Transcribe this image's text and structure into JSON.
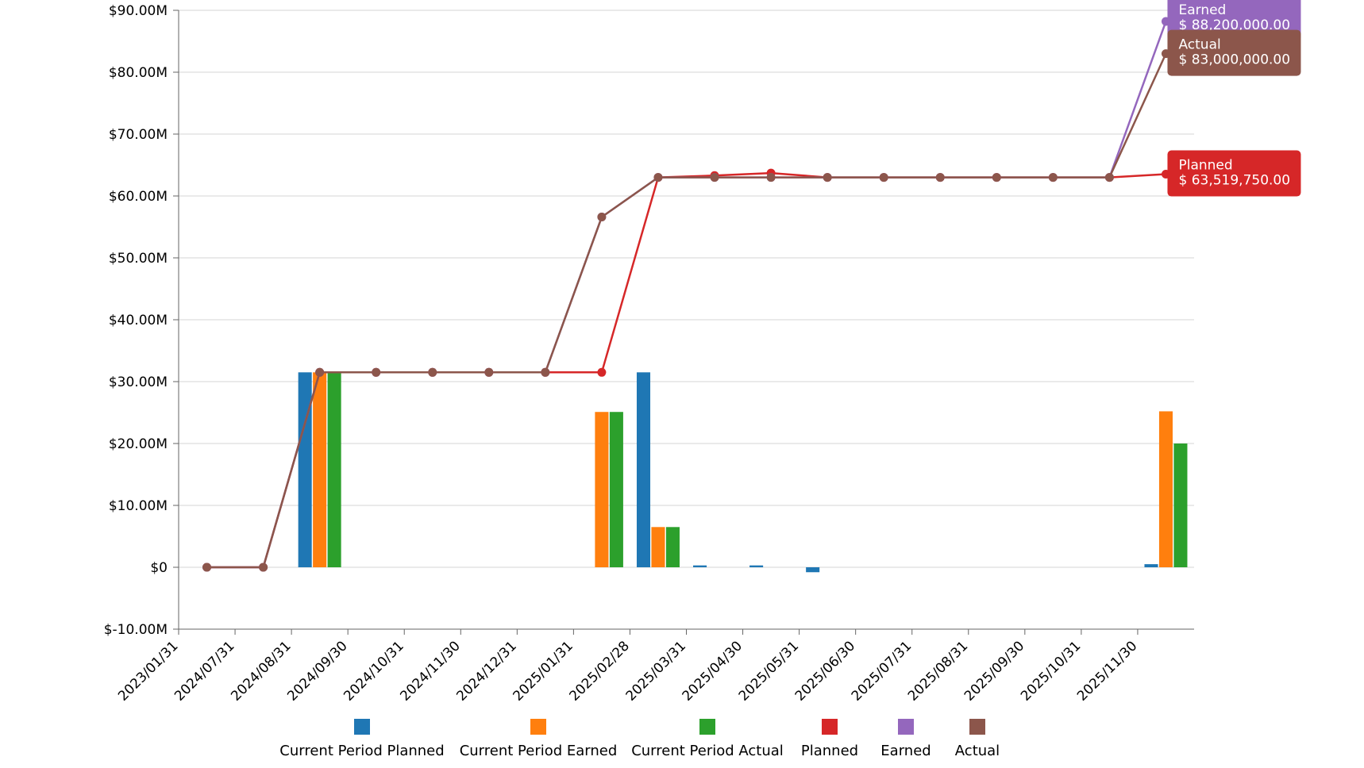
{
  "chart_data": {
    "type": "bar",
    "categories": [
      "2023/01/31",
      "2024/07/31",
      "2024/08/31",
      "2024/09/30",
      "2024/10/31",
      "2024/11/30",
      "2024/12/31",
      "2025/01/31",
      "2025/02/28",
      "2025/03/31",
      "2025/04/30",
      "2025/05/31",
      "2025/06/30",
      "2025/07/31",
      "2025/08/31",
      "2025/09/30",
      "2025/10/31",
      "2025/11/30"
    ],
    "ylim": [
      -10000000,
      90000000
    ],
    "y_ticks": [
      {
        "value": 90000000,
        "label": "$90.00M"
      },
      {
        "value": 80000000,
        "label": "$80.00M"
      },
      {
        "value": 70000000,
        "label": "$70.00M"
      },
      {
        "value": 60000000,
        "label": "$60.00M"
      },
      {
        "value": 50000000,
        "label": "$50.00M"
      },
      {
        "value": 40000000,
        "label": "$40.00M"
      },
      {
        "value": 30000000,
        "label": "$30.00M"
      },
      {
        "value": 20000000,
        "label": "$20.00M"
      },
      {
        "value": 10000000,
        "label": "$10.00M"
      },
      {
        "value": 0,
        "label": "$0"
      },
      {
        "value": -10000000,
        "label": "$-10.00M"
      }
    ],
    "grid": true,
    "legend_position": "bottom",
    "bar_series": [
      {
        "name": "Current Period Planned",
        "color": "#1f77b4",
        "values": [
          0,
          0,
          31500000,
          0,
          0,
          0,
          0,
          0,
          31500000,
          300000,
          300000,
          -800000,
          0,
          0,
          0,
          0,
          0,
          500000
        ]
      },
      {
        "name": "Current Period Earned",
        "color": "#ff7f0e",
        "values": [
          0,
          0,
          31500000,
          0,
          0,
          0,
          0,
          25100000,
          6500000,
          0,
          0,
          0,
          0,
          0,
          0,
          0,
          0,
          25200000
        ]
      },
      {
        "name": "Current Period Actual",
        "color": "#2ca02c",
        "values": [
          0,
          0,
          31500000,
          0,
          0,
          0,
          0,
          25100000,
          6500000,
          0,
          0,
          0,
          0,
          0,
          0,
          0,
          0,
          20000000
        ]
      }
    ],
    "line_series": [
      {
        "name": "Planned",
        "color": "#d62728",
        "values": [
          0,
          0,
          31500000,
          31500000,
          31500000,
          31500000,
          31500000,
          31500000,
          63000000,
          63300000,
          63700000,
          63000000,
          63000000,
          63000000,
          63000000,
          63000000,
          63000000,
          63519750
        ]
      },
      {
        "name": "Earned",
        "color": "#9467bd",
        "values": [
          0,
          0,
          31500000,
          31500000,
          31500000,
          31500000,
          31500000,
          56600000,
          63000000,
          63000000,
          63000000,
          63000000,
          63000000,
          63000000,
          63000000,
          63000000,
          63000000,
          88200000
        ]
      },
      {
        "name": "Actual",
        "color": "#8c564b",
        "values": [
          0,
          0,
          31500000,
          31500000,
          31500000,
          31500000,
          31500000,
          56600000,
          63000000,
          63000000,
          63000000,
          63000000,
          63000000,
          63000000,
          63000000,
          63000000,
          63000000,
          83000000
        ]
      }
    ],
    "tooltips": [
      {
        "series": "Earned",
        "title": "Earned",
        "value_text": "$ 88,200,000.00",
        "color": "#9467bd"
      },
      {
        "series": "Actual",
        "title": "Actual",
        "value_text": "$ 83,000,000.00",
        "color": "#8c564b"
      },
      {
        "series": "Planned",
        "title": "Planned",
        "value_text": "$ 63,519,750.00",
        "color": "#d62728"
      }
    ],
    "legend": [
      {
        "label": "Current Period Planned",
        "color": "#1f77b4"
      },
      {
        "label": "Current Period Earned",
        "color": "#ff7f0e"
      },
      {
        "label": "Current Period Actual",
        "color": "#2ca02c"
      },
      {
        "label": "Planned",
        "color": "#d62728"
      },
      {
        "label": "Earned",
        "color": "#9467bd"
      },
      {
        "label": "Actual",
        "color": "#8c564b"
      }
    ]
  }
}
